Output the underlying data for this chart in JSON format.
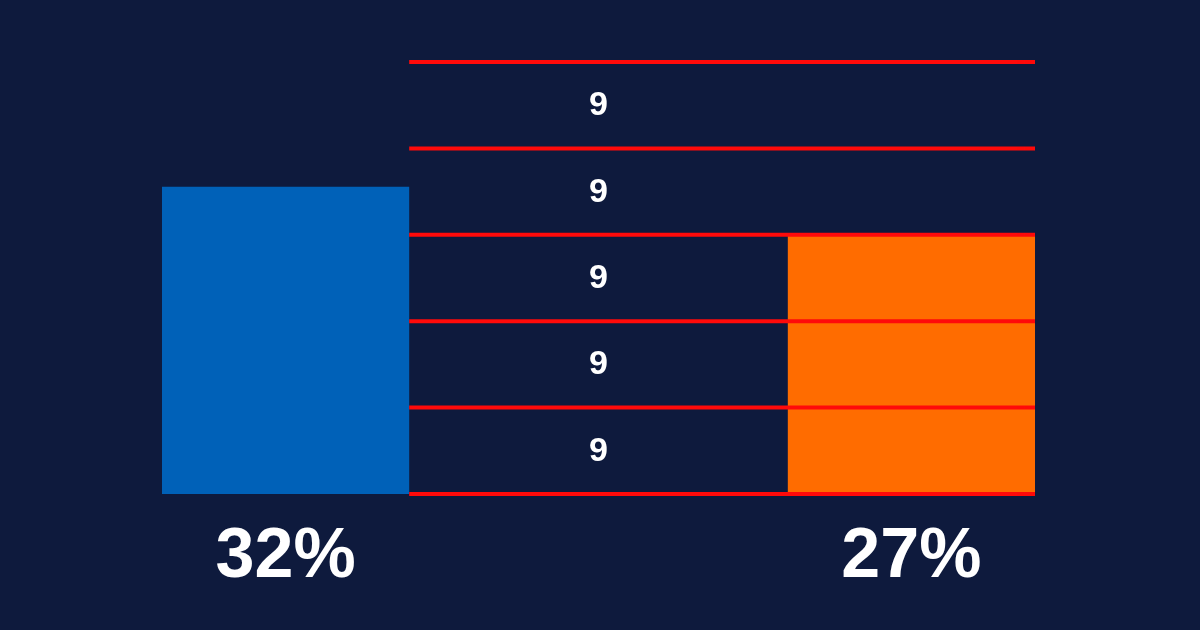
{
  "chart_data": {
    "type": "bar",
    "categories": [
      null,
      null
    ],
    "values": [
      32,
      27
    ],
    "colors": [
      "#0061b8",
      "#ff6c00"
    ],
    "value_labels": [
      "32%",
      "27%"
    ],
    "ref_lines": [
      {
        "axis": "y",
        "value": 0,
        "color": "#ff0a0a"
      },
      {
        "axis": "y",
        "value": 9,
        "color": "#ff0a0a"
      },
      {
        "axis": "y",
        "value": 18,
        "color": "#ff0a0a"
      },
      {
        "axis": "y",
        "value": 27,
        "color": "#ff0a0a"
      },
      {
        "axis": "y",
        "value": 36,
        "color": "#ff0a0a"
      },
      {
        "axis": "y",
        "value": 45,
        "color": "#ff0a0a"
      }
    ],
    "annotations": [
      "9",
      "9",
      "9",
      "9",
      "9"
    ]
  }
}
